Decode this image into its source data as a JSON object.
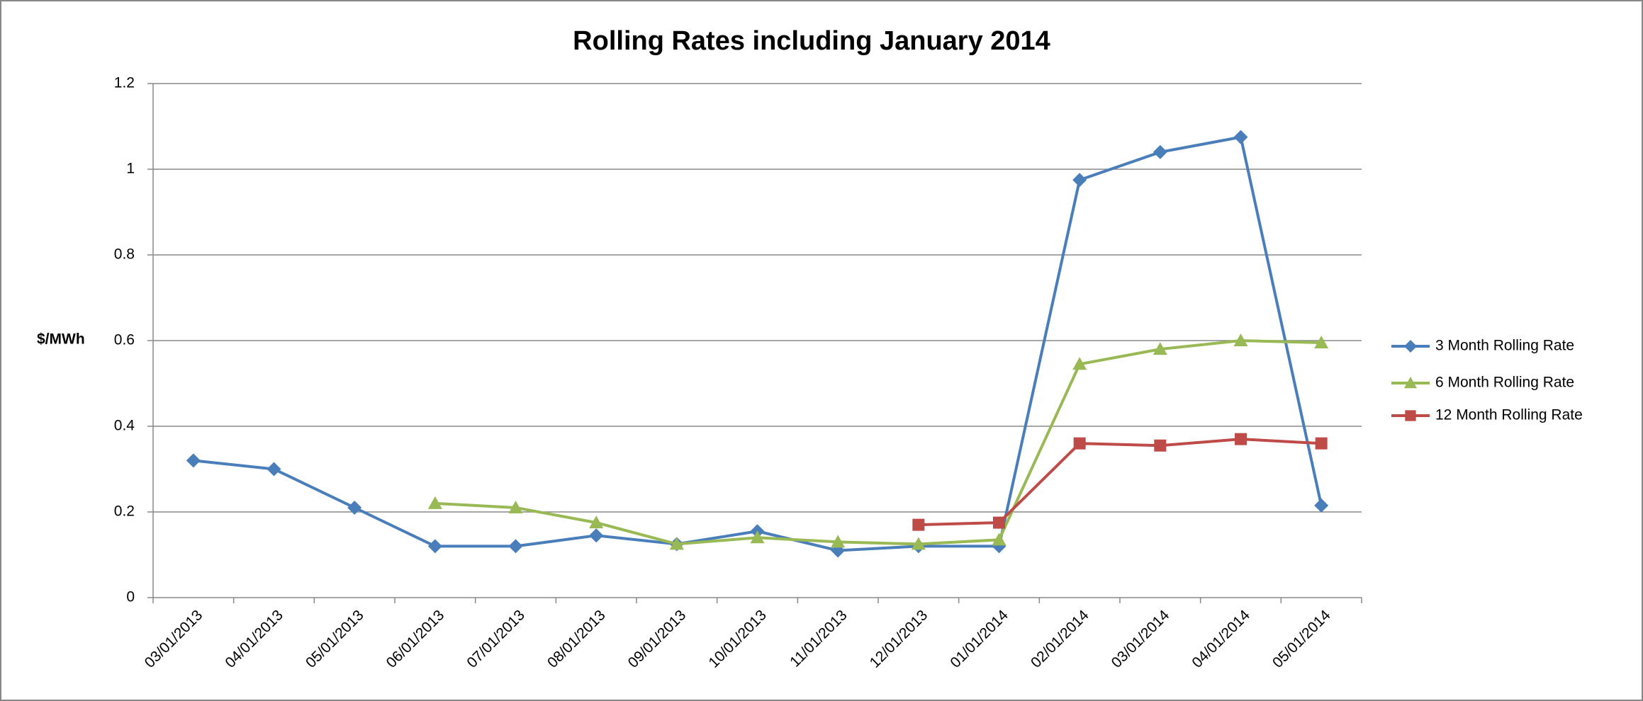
{
  "chart_data": {
    "type": "line",
    "title": "Rolling Rates including January 2014",
    "y_label": "$/MWh",
    "categories": [
      "03/01/2013",
      "04/01/2013",
      "05/01/2013",
      "06/01/2013",
      "07/01/2013",
      "08/01/2013",
      "09/01/2013",
      "10/01/2013",
      "11/01/2013",
      "12/01/2013",
      "01/01/2014",
      "02/01/2014",
      "03/01/2014",
      "04/01/2014",
      "05/01/2014"
    ],
    "series": [
      {
        "name": "3 Month Rolling Rate",
        "color": "#4a7ebb",
        "marker": "diamond",
        "values": [
          0.32,
          0.3,
          0.21,
          0.12,
          0.12,
          0.145,
          0.125,
          0.155,
          0.11,
          0.12,
          0.12,
          0.975,
          1.04,
          1.075,
          0.215
        ]
      },
      {
        "name": "6 Month Rolling Rate",
        "color": "#98b954",
        "marker": "triangle",
        "values": [
          null,
          null,
          null,
          0.22,
          0.21,
          0.175,
          0.125,
          0.14,
          0.13,
          0.125,
          0.135,
          0.545,
          0.58,
          0.6,
          0.595
        ]
      },
      {
        "name": "12 Month Rolling Rate",
        "color": "#be4b48",
        "marker": "square",
        "values": [
          null,
          null,
          null,
          null,
          null,
          null,
          null,
          null,
          null,
          0.17,
          0.175,
          0.36,
          0.355,
          0.37,
          0.36
        ]
      }
    ],
    "ylim": [
      0,
      1.2
    ],
    "yticks": [
      0,
      0.2,
      0.4,
      0.6,
      0.8,
      1,
      1.2
    ],
    "grid": true,
    "legend": "right"
  }
}
